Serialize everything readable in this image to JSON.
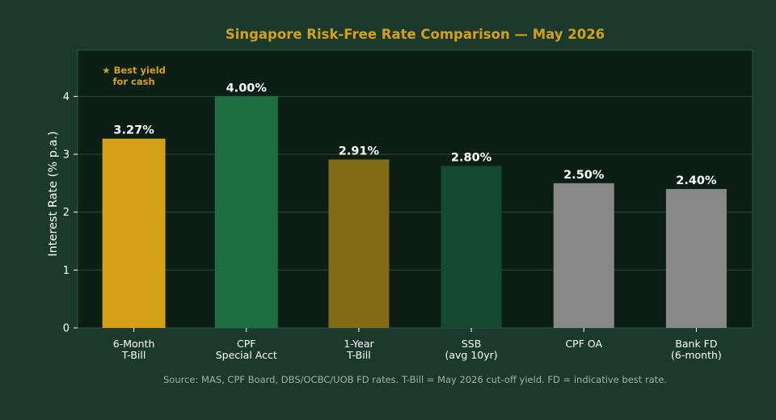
{
  "chart_data": {
    "type": "bar",
    "title": "Singapore Risk-Free Rate Comparison — May 2026",
    "xlabel": "",
    "ylabel": "Interest Rate (% p.a.)",
    "ylim": [
      0,
      4.8
    ],
    "yticks": [
      "0",
      "1",
      "2",
      "3",
      "4"
    ],
    "grid": true,
    "categories": [
      [
        "6-Month",
        "T-Bill"
      ],
      [
        "CPF",
        "Special Acct"
      ],
      [
        "1-Year",
        "T-Bill"
      ],
      [
        "SSB",
        "(avg 10yr)"
      ],
      [
        "CPF OA"
      ],
      [
        "Bank FD",
        "(6-month)"
      ]
    ],
    "values": [
      3.27,
      4.0,
      2.91,
      2.8,
      2.5,
      2.4
    ],
    "value_labels": [
      "3.27%",
      "4.00%",
      "2.91%",
      "2.80%",
      "2.50%",
      "2.40%"
    ],
    "bar_colors": [
      "#d4a017",
      "#1e6e42",
      "#826a16",
      "#134a2f",
      "#888888",
      "#888888"
    ],
    "annotation": {
      "lines": [
        "★ Best yield",
        "for cash"
      ],
      "color": "#d4a017"
    },
    "source": "Source: MAS, CPF Board, DBS/OCBC/UOB FD rates. T-Bill = May 2026 cut-off yield. FD = indicative best rate."
  },
  "colors": {
    "background": "#1b3a2d",
    "plot_background": "#0c1f17",
    "grid": "#2a5a42",
    "title": "#d4a017",
    "axis_text": "#ffffff",
    "source_text": "#9fb3a8"
  }
}
